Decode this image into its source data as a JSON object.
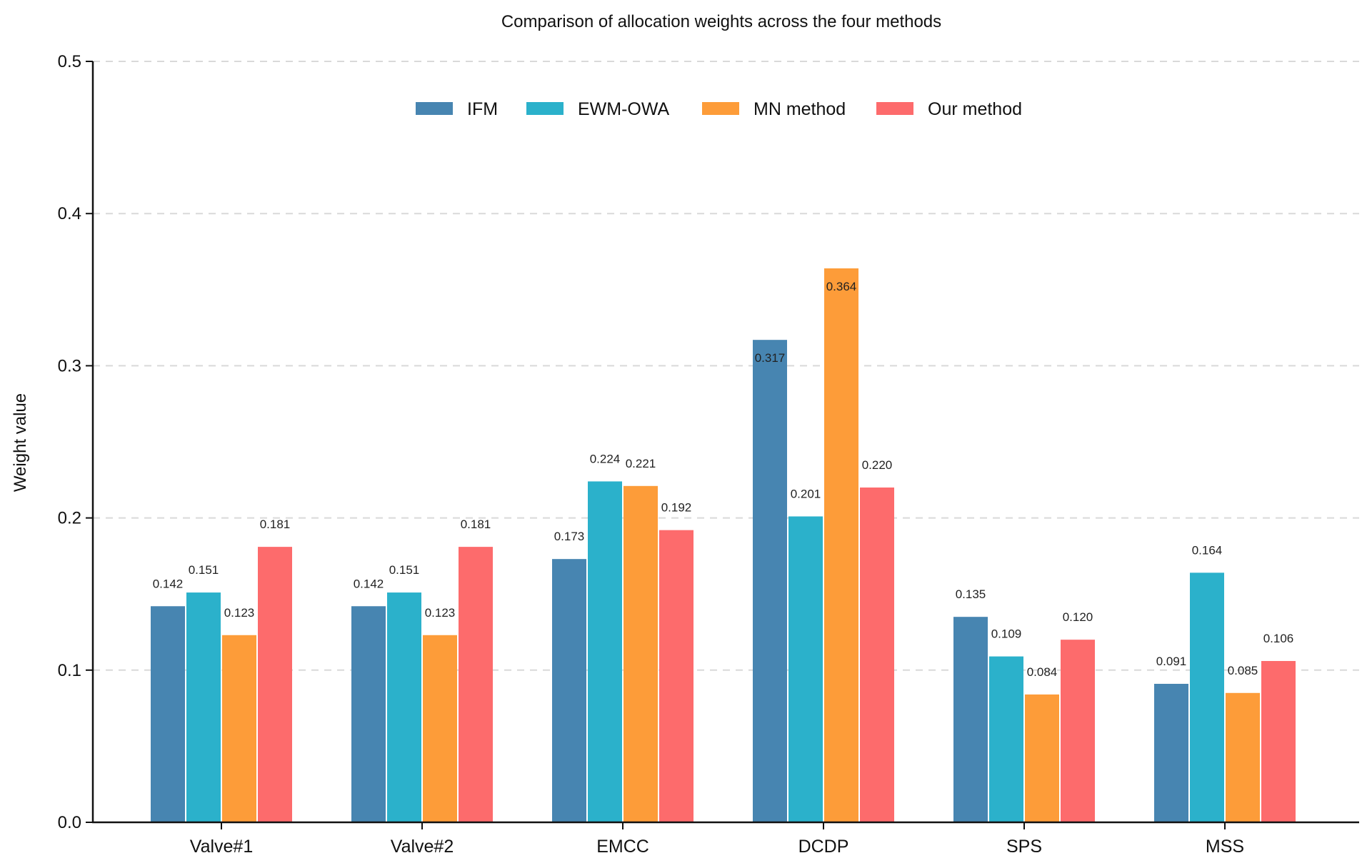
{
  "chart_data": {
    "type": "bar",
    "title": "Comparison of allocation weights across the four methods",
    "xlabel": "",
    "ylabel": "Weight value",
    "ylim": [
      0,
      0.5
    ],
    "yticks": [
      0.0,
      0.1,
      0.2,
      0.3,
      0.4,
      0.5
    ],
    "ytick_labels": [
      "0.0",
      "0.1",
      "0.2",
      "0.3",
      "0.4",
      "0.5"
    ],
    "grid": "horizontal dashed",
    "legend_position": "top-center",
    "categories": [
      "Valve#1",
      "Valve#2",
      "EMCC",
      "DCDP",
      "SPS",
      "MSS"
    ],
    "series": [
      {
        "name": "IFM",
        "color": "#4785b1",
        "values": [
          0.142,
          0.142,
          0.173,
          0.317,
          0.135,
          0.091
        ],
        "labels": [
          "0.142",
          "0.142",
          "0.173",
          "0.317",
          "0.135",
          "0.091"
        ]
      },
      {
        "name": "EWM-OWA",
        "color": "#2bb1cb",
        "values": [
          0.151,
          0.151,
          0.224,
          0.201,
          0.109,
          0.164
        ],
        "labels": [
          "0.151",
          "0.151",
          "0.224",
          "0.201",
          "0.109",
          "0.164"
        ]
      },
      {
        "name": "MN method",
        "color": "#fd9c39",
        "values": [
          0.123,
          0.123,
          0.221,
          0.364,
          0.084,
          0.085
        ],
        "labels": [
          "0.123",
          "0.123",
          "0.221",
          "0.364",
          "0.084",
          "0.085"
        ]
      },
      {
        "name": "Our method",
        "color": "#fd6b6c",
        "values": [
          0.181,
          0.181,
          0.192,
          0.22,
          0.12,
          0.106
        ],
        "labels": [
          "0.181",
          "0.181",
          "0.192",
          "0.220",
          "0.120",
          "0.106"
        ]
      }
    ]
  }
}
